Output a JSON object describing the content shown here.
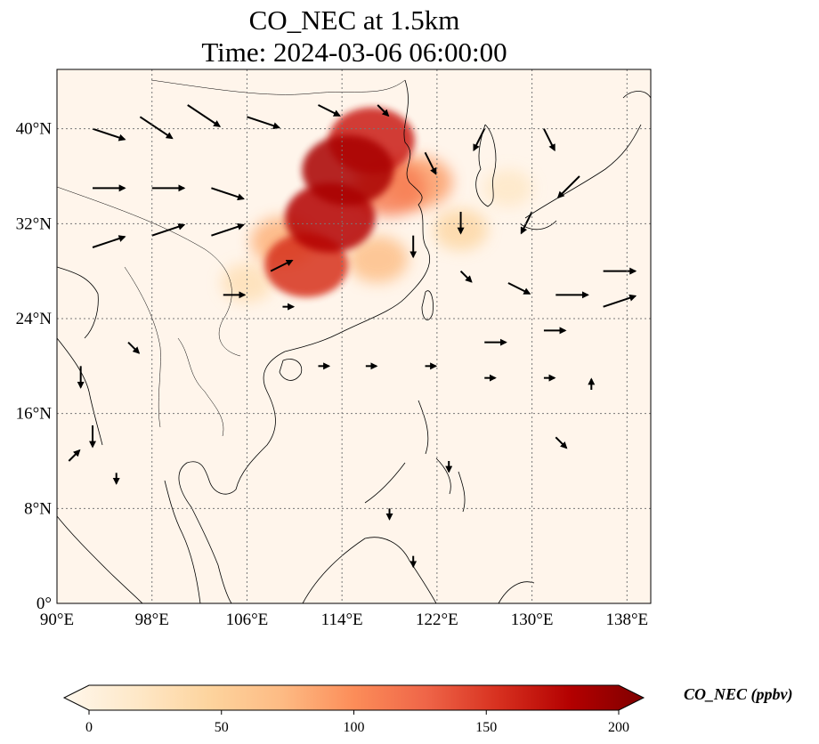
{
  "title": {
    "line1": "CO_NEC at 1.5km",
    "line2": "Time: 2024-03-06 06:00:00"
  },
  "map": {
    "lon_range": [
      90,
      140
    ],
    "lat_range": [
      0,
      45
    ],
    "x_ticks": [
      "90°E",
      "98°E",
      "106°E",
      "114°E",
      "122°E",
      "130°E",
      "138°E"
    ],
    "x_tick_values": [
      90,
      98,
      106,
      114,
      122,
      130,
      138
    ],
    "y_ticks": [
      "0°",
      "8°N",
      "16°N",
      "24°N",
      "32°N",
      "40°N"
    ],
    "y_tick_values": [
      0,
      8,
      16,
      24,
      32,
      40
    ],
    "grid": true,
    "background_color": "#fff5eb"
  },
  "colorbar": {
    "label": "CO_NEC (ppbv)",
    "ticks": [
      "0",
      "50",
      "100",
      "150",
      "200"
    ],
    "tick_values": [
      0,
      50,
      100,
      150,
      200
    ],
    "range": [
      0,
      200
    ],
    "colormap": "OrRd",
    "colors": [
      "#fff7ec",
      "#fee8c8",
      "#fdd49e",
      "#fdbb84",
      "#fc8d59",
      "#ef6548",
      "#d7301f",
      "#b30000",
      "#7f0000"
    ]
  },
  "chart_data": {
    "type": "heatmap",
    "variable": "CO_NEC",
    "units": "ppbv",
    "level": "1.5km",
    "time": "2024-03-06 06:00:00",
    "plumes": [
      {
        "lon": 114.5,
        "lat": 36.5,
        "value": 180
      },
      {
        "lon": 116.5,
        "lat": 39.0,
        "value": 160
      },
      {
        "lon": 113.0,
        "lat": 32.5,
        "value": 175
      },
      {
        "lon": 111.0,
        "lat": 28.5,
        "value": 150
      },
      {
        "lon": 118.0,
        "lat": 35.0,
        "value": 110
      },
      {
        "lon": 120.5,
        "lat": 35.5,
        "value": 90
      },
      {
        "lon": 109.0,
        "lat": 30.5,
        "value": 80
      },
      {
        "lon": 117.0,
        "lat": 29.0,
        "value": 70
      },
      {
        "lon": 124.0,
        "lat": 31.5,
        "value": 45
      },
      {
        "lon": 106.0,
        "lat": 27.0,
        "value": 35
      },
      {
        "lon": 128.0,
        "lat": 35.0,
        "value": 25
      }
    ],
    "wind_vectors": [
      {
        "lon": 93,
        "lat": 40,
        "u": 3,
        "v": -1
      },
      {
        "lon": 97,
        "lat": 41,
        "u": 3,
        "v": -2
      },
      {
        "lon": 101,
        "lat": 42,
        "u": 3,
        "v": -2
      },
      {
        "lon": 106,
        "lat": 41,
        "u": 3,
        "v": -1
      },
      {
        "lon": 93,
        "lat": 35,
        "u": 3,
        "v": 0
      },
      {
        "lon": 98,
        "lat": 35,
        "u": 3,
        "v": 0
      },
      {
        "lon": 103,
        "lat": 35,
        "u": 3,
        "v": -1
      },
      {
        "lon": 93,
        "lat": 30,
        "u": 3,
        "v": 1
      },
      {
        "lon": 98,
        "lat": 31,
        "u": 3,
        "v": 1
      },
      {
        "lon": 103,
        "lat": 31,
        "u": 3,
        "v": 1
      },
      {
        "lon": 108,
        "lat": 28,
        "u": 2,
        "v": 1
      },
      {
        "lon": 104,
        "lat": 26,
        "u": 2,
        "v": 0
      },
      {
        "lon": 109,
        "lat": 25,
        "u": 1,
        "v": 0
      },
      {
        "lon": 112,
        "lat": 42,
        "u": 2,
        "v": -1
      },
      {
        "lon": 117,
        "lat": 42,
        "u": 1,
        "v": -1
      },
      {
        "lon": 121,
        "lat": 38,
        "u": 1,
        "v": -2
      },
      {
        "lon": 126,
        "lat": 40,
        "u": -1,
        "v": -2
      },
      {
        "lon": 131,
        "lat": 40,
        "u": 1,
        "v": -2
      },
      {
        "lon": 134,
        "lat": 36,
        "u": -2,
        "v": -2
      },
      {
        "lon": 130,
        "lat": 33,
        "u": -1,
        "v": -2
      },
      {
        "lon": 124,
        "lat": 33,
        "u": 0,
        "v": -2
      },
      {
        "lon": 120,
        "lat": 31,
        "u": 0,
        "v": -2
      },
      {
        "lon": 124,
        "lat": 28,
        "u": 1,
        "v": -1
      },
      {
        "lon": 128,
        "lat": 27,
        "u": 2,
        "v": -1
      },
      {
        "lon": 132,
        "lat": 26,
        "u": 3,
        "v": 0
      },
      {
        "lon": 136,
        "lat": 28,
        "u": 3,
        "v": 0
      },
      {
        "lon": 136,
        "lat": 25,
        "u": 3,
        "v": 1
      },
      {
        "lon": 131,
        "lat": 23,
        "u": 2,
        "v": 0
      },
      {
        "lon": 126,
        "lat": 22,
        "u": 2,
        "v": 0
      },
      {
        "lon": 126,
        "lat": 19,
        "u": 1,
        "v": 0
      },
      {
        "lon": 131,
        "lat": 19,
        "u": 1,
        "v": 0
      },
      {
        "lon": 121,
        "lat": 20,
        "u": 1,
        "v": 0
      },
      {
        "lon": 116,
        "lat": 20,
        "u": 1,
        "v": 0
      },
      {
        "lon": 112,
        "lat": 20,
        "u": 1,
        "v": 0
      },
      {
        "lon": 96,
        "lat": 22,
        "u": 1,
        "v": -1
      },
      {
        "lon": 92,
        "lat": 20,
        "u": 0,
        "v": -2
      },
      {
        "lon": 93,
        "lat": 15,
        "u": 0,
        "v": -2
      },
      {
        "lon": 91,
        "lat": 12,
        "u": 1,
        "v": 1
      },
      {
        "lon": 95,
        "lat": 11,
        "u": 0,
        "v": -1
      },
      {
        "lon": 123,
        "lat": 12,
        "u": 0,
        "v": -1
      },
      {
        "lon": 118,
        "lat": 8,
        "u": 0,
        "v": -1
      },
      {
        "lon": 120,
        "lat": 4,
        "u": 0,
        "v": -1
      },
      {
        "lon": 132,
        "lat": 14,
        "u": 1,
        "v": -1
      },
      {
        "lon": 135,
        "lat": 18,
        "u": 0,
        "v": 1
      }
    ]
  }
}
